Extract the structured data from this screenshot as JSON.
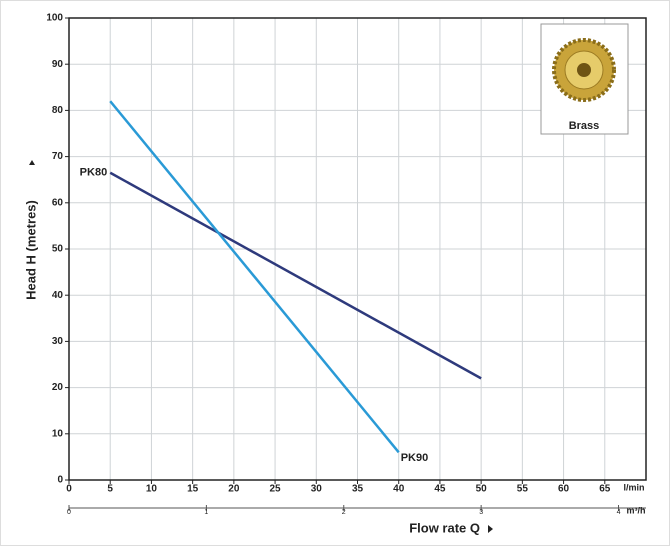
{
  "chart_data": {
    "type": "line",
    "x_label": "Flow rate Q",
    "y_label": "Head H (metres)",
    "x_unit": "l/min",
    "x2_unit": "m³/h",
    "image_label": "Brass",
    "xlim": [
      0,
      70
    ],
    "xticks": [
      0,
      5,
      10,
      15,
      20,
      25,
      30,
      35,
      40,
      45,
      50,
      55,
      60,
      65
    ],
    "x2lim": [
      0,
      4.2
    ],
    "x2ticks": [
      0,
      1,
      2,
      3,
      4
    ],
    "ylim": [
      0,
      100
    ],
    "yticks": [
      0,
      10,
      20,
      30,
      40,
      50,
      60,
      70,
      80,
      90,
      100
    ],
    "grid": true,
    "series": [
      {
        "name": "PK80",
        "color": "#2e3a7c",
        "x": [
          5,
          50
        ],
        "values": [
          66.5,
          22
        ]
      },
      {
        "name": "PK90",
        "color": "#2a9ad6",
        "x": [
          5,
          40
        ],
        "values": [
          82,
          6
        ]
      }
    ]
  }
}
